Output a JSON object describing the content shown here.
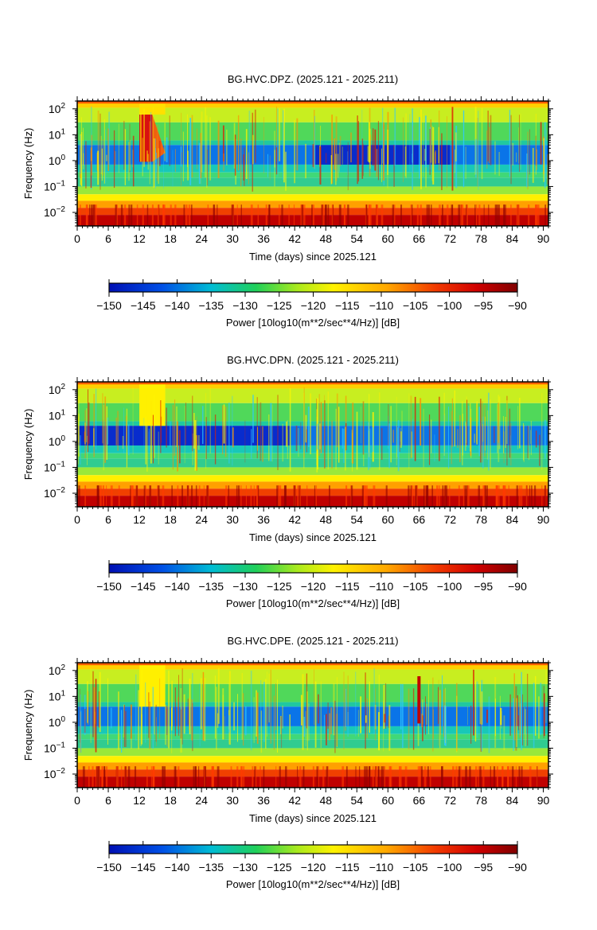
{
  "chart_data": [
    {
      "type": "heatmap",
      "title": "BG.HVC.DPZ. (2025.121 - 2025.211)",
      "xlabel": "Time (days) since 2025.121",
      "ylabel": "Frequency (Hz)",
      "x_ticks": [
        0,
        6,
        12,
        18,
        24,
        30,
        36,
        42,
        48,
        54,
        60,
        66,
        72,
        78,
        84,
        90
      ],
      "x_range": [
        0,
        91
      ],
      "y_scale": "log",
      "y_ticks": [
        {
          "base": "10",
          "exp": "2",
          "value": 100
        },
        {
          "base": "10",
          "exp": "1",
          "value": 10
        },
        {
          "base": "10",
          "exp": "0",
          "value": 1
        },
        {
          "base": "10",
          "exp": "−1",
          "value": 0.1
        },
        {
          "base": "10",
          "exp": "−2",
          "value": 0.01
        }
      ],
      "y_range": [
        0.003,
        200
      ],
      "colorbar": {
        "label": "Power [10log10(m**2/sec**4/Hz)] [dB]",
        "range": [
          -150,
          -90
        ],
        "ticks": [
          "−150",
          "−145",
          "−140",
          "−135",
          "−130",
          "−125",
          "−120",
          "−115",
          "−110",
          "−105",
          "−100",
          "−95",
          "−90"
        ],
        "colormap": "jet-like (blue → cyan → green → yellow → orange → red → dark red)"
      },
      "features": {
        "gap_days": [
          12,
          17
        ],
        "quiet_band_Hz": [
          0.7,
          4
        ],
        "quiet_period_days": [
          46,
          72
        ]
      }
    },
    {
      "type": "heatmap",
      "title": "BG.HVC.DPN. (2025.121 - 2025.211)",
      "xlabel": "Time (days) since 2025.121",
      "ylabel": "Frequency (Hz)",
      "x_ticks": [
        0,
        6,
        12,
        18,
        24,
        30,
        36,
        42,
        48,
        54,
        60,
        66,
        72,
        78,
        84,
        90
      ],
      "x_range": [
        0,
        91
      ],
      "y_scale": "log",
      "y_ticks": [
        {
          "base": "10",
          "exp": "2",
          "value": 100
        },
        {
          "base": "10",
          "exp": "1",
          "value": 10
        },
        {
          "base": "10",
          "exp": "0",
          "value": 1
        },
        {
          "base": "10",
          "exp": "−1",
          "value": 0.1
        },
        {
          "base": "10",
          "exp": "−2",
          "value": 0.01
        }
      ],
      "y_range": [
        0.003,
        200
      ],
      "colorbar": {
        "label": "Power [10log10(m**2/sec**4/Hz)] [dB]",
        "range": [
          -150,
          -90
        ],
        "ticks": [
          "−150",
          "−145",
          "−140",
          "−135",
          "−130",
          "−125",
          "−120",
          "−115",
          "−110",
          "−105",
          "−100",
          "−95",
          "−90"
        ]
      },
      "features": {
        "gap_days": [
          12,
          17
        ],
        "quiet_band_Hz": [
          0.7,
          4
        ],
        "quiet_period_days": [
          0,
          41
        ]
      }
    },
    {
      "type": "heatmap",
      "title": "BG.HVC.DPE. (2025.121 - 2025.211)",
      "xlabel": "Time (days) since 2025.121",
      "ylabel": "Frequency (Hz)",
      "x_ticks": [
        0,
        6,
        12,
        18,
        24,
        30,
        36,
        42,
        48,
        54,
        60,
        66,
        72,
        78,
        84,
        90
      ],
      "x_range": [
        0,
        91
      ],
      "y_scale": "log",
      "y_ticks": [
        {
          "base": "10",
          "exp": "2",
          "value": 100
        },
        {
          "base": "10",
          "exp": "1",
          "value": 10
        },
        {
          "base": "10",
          "exp": "0",
          "value": 1
        },
        {
          "base": "10",
          "exp": "−1",
          "value": 0.1
        },
        {
          "base": "10",
          "exp": "−2",
          "value": 0.01
        }
      ],
      "y_range": [
        0.003,
        200
      ],
      "colorbar": {
        "label": "Power [10log10(m**2/sec**4/Hz)] [dB]",
        "range": [
          -150,
          -90
        ],
        "ticks": [
          "−150",
          "−145",
          "−140",
          "−135",
          "−130",
          "−125",
          "−120",
          "−115",
          "−110",
          "−105",
          "−100",
          "−95",
          "−90"
        ]
      },
      "features": {
        "gap_days": [
          12,
          17
        ],
        "quiet_band_Hz": [
          0.8,
          3
        ],
        "event_day": 66
      }
    }
  ]
}
